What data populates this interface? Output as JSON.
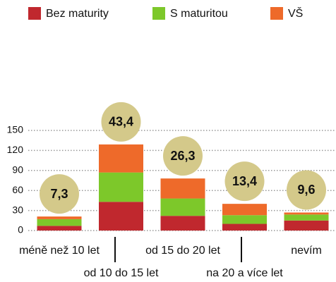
{
  "chart_data": {
    "type": "bar",
    "stacked": true,
    "categories": [
      "méně než 10 let",
      "od 10 do 15 let",
      "od 15 do 20 let",
      "na 20 a více let",
      "nevím"
    ],
    "series": [
      {
        "name": "Bez maturity",
        "color": "#c0282e",
        "values": [
          7,
          43,
          22,
          10,
          15
        ]
      },
      {
        "name": "S maturitou",
        "color": "#7dc82a",
        "values": [
          10,
          44,
          26,
          13,
          9
        ]
      },
      {
        "name": "VŠ",
        "color": "#ee6a2a",
        "values": [
          4,
          42,
          30,
          17,
          3
        ]
      }
    ],
    "annotations": [
      "7,3",
      "43,4",
      "26,3",
      "13,4",
      "9,6"
    ],
    "ylim": [
      0,
      150
    ],
    "yticks": [
      0,
      30,
      60,
      90,
      120,
      150
    ],
    "grid": true
  }
}
